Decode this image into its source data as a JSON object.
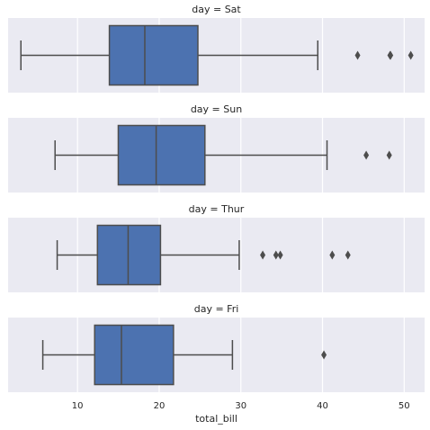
{
  "chart_data": {
    "type": "box",
    "layout": "facet-rows",
    "xlabel": "total_bill",
    "xlim": [
      1.5,
      52.5
    ],
    "xticks": [
      10,
      20,
      30,
      40,
      50
    ],
    "grid": true,
    "colors": {
      "background": "#EAEAF2",
      "grid": "#FFFFFF",
      "box_fill": "#4C72B0",
      "line": "#4D4D4D"
    },
    "panels": [
      {
        "title": "day = Sat",
        "whisker_low": 3.07,
        "q1": 13.9,
        "median": 18.24,
        "q3": 24.74,
        "whisker_high": 39.42,
        "outliers": [
          44.3,
          48.27,
          48.33,
          50.81
        ]
      },
      {
        "title": "day = Sun",
        "whisker_low": 7.25,
        "q1": 14.99,
        "median": 19.63,
        "q3": 25.6,
        "whisker_high": 40.55,
        "outliers": [
          45.35,
          48.17
        ]
      },
      {
        "title": "day = Thur",
        "whisker_low": 7.51,
        "q1": 12.44,
        "median": 16.2,
        "q3": 20.16,
        "whisker_high": 29.8,
        "outliers": [
          32.68,
          34.3,
          34.83,
          41.19,
          43.11
        ]
      },
      {
        "title": "day = Fri",
        "whisker_low": 5.75,
        "q1": 12.1,
        "median": 15.38,
        "q3": 21.75,
        "whisker_high": 28.97,
        "outliers": [
          40.17
        ]
      }
    ]
  }
}
